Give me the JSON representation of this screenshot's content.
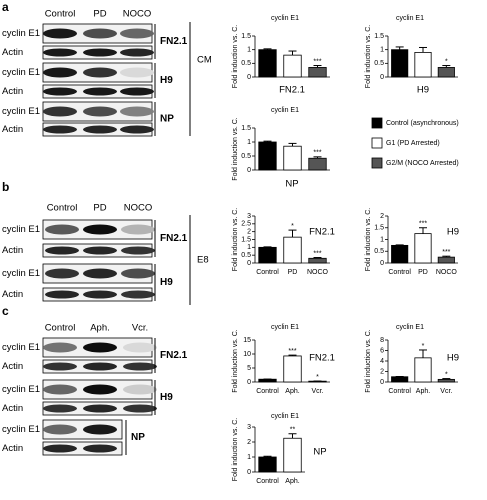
{
  "blots": [
    {
      "letter": "a",
      "lanes": [
        "Control",
        "PD",
        "NOCO"
      ],
      "groups": [
        {
          "name": "FN2.1",
          "rows": [
            "cyclin E1",
            "Actin"
          ]
        },
        {
          "name": "H9",
          "rows": [
            "cyclin E1",
            "Actin"
          ]
        },
        {
          "name": "NP",
          "rows": [
            "cyclin E1",
            "Actin"
          ]
        }
      ],
      "condition": "CM"
    },
    {
      "letter": "b",
      "lanes": [
        "Control",
        "PD",
        "NOCO"
      ],
      "groups": [
        {
          "name": "FN2.1",
          "rows": [
            "cyclin E1",
            "Actin"
          ]
        },
        {
          "name": "H9",
          "rows": [
            "cyclin E1",
            "Actin"
          ]
        }
      ],
      "condition": "E8"
    },
    {
      "letter": "c",
      "lanes": [
        "Control",
        "Aph.",
        "Vcr."
      ],
      "groups": [
        {
          "name": "FN2.1",
          "rows": [
            "cyclin E1",
            "Actin"
          ]
        },
        {
          "name": "H9",
          "rows": [
            "cyclin E1",
            "Actin"
          ]
        },
        {
          "name": "NP",
          "rows": [
            "cyclin E1",
            "Actin"
          ]
        }
      ]
    }
  ],
  "legend": [
    {
      "name": "Control (asynchronous)",
      "color": "#000000"
    },
    {
      "name": "G1 (PD Arrested)",
      "color": "#ffffff"
    },
    {
      "name": "G2/M (NOCO Arrested)",
      "color": "#555555"
    }
  ],
  "chart_data": [
    {
      "type": "bar",
      "title": "cyclin E1",
      "ylabel": "Fold induction vs. C.",
      "label": "FN2.1",
      "values": [
        1.0,
        0.8,
        0.35
      ],
      "errors": [
        0.03,
        0.15,
        0.07
      ],
      "colors": [
        "#000000",
        "#ffffff",
        "#555555"
      ],
      "annotations": [
        null,
        null,
        "***"
      ],
      "ylim": [
        0,
        1.5
      ],
      "yticks": [
        0,
        0.5,
        1,
        1.5
      ]
    },
    {
      "type": "bar",
      "title": "cyclin E1",
      "ylabel": "Fold induction vs. C.",
      "label": "H9",
      "values": [
        1.0,
        0.9,
        0.35
      ],
      "errors": [
        0.1,
        0.18,
        0.07
      ],
      "colors": [
        "#000000",
        "#ffffff",
        "#555555"
      ],
      "annotations": [
        null,
        null,
        "*"
      ],
      "ylim": [
        0,
        1.5
      ],
      "yticks": [
        0,
        0.5,
        1,
        1.5
      ]
    },
    {
      "type": "bar",
      "title": "cyclin E1",
      "ylabel": "Fold induction vs. C.",
      "label": "NP",
      "values": [
        1.0,
        0.85,
        0.42
      ],
      "errors": [
        0.03,
        0.1,
        0.05
      ],
      "colors": [
        "#000000",
        "#ffffff",
        "#555555"
      ],
      "annotations": [
        null,
        null,
        "***"
      ],
      "ylim": [
        0,
        1.5
      ],
      "yticks": [
        0,
        0.5,
        1,
        1.5
      ]
    },
    {
      "type": "bar",
      "ylabel": "Fold induction vs. C.",
      "label": "FN2.1",
      "categories": [
        "Control",
        "PD",
        "NOCO"
      ],
      "values": [
        1.0,
        1.65,
        0.3
      ],
      "errors": [
        0.03,
        0.45,
        0.05
      ],
      "colors": [
        "#000000",
        "#ffffff",
        "#555555"
      ],
      "annotations": [
        null,
        "*",
        "***"
      ],
      "ylim": [
        0,
        3
      ],
      "yticks": [
        0,
        0.5,
        1,
        1.5,
        2,
        2.5,
        3
      ]
    },
    {
      "type": "bar",
      "ylabel": "Fold induction vs. C.",
      "label": "H9",
      "categories": [
        "Control",
        "PD",
        "NOCO"
      ],
      "values": [
        0.75,
        1.25,
        0.25
      ],
      "errors": [
        0.02,
        0.25,
        0.04
      ],
      "colors": [
        "#000000",
        "#ffffff",
        "#555555"
      ],
      "annotations": [
        null,
        "***",
        "***"
      ],
      "ylim": [
        0,
        2
      ],
      "yticks": [
        0,
        0.5,
        1,
        1.5,
        2
      ]
    },
    {
      "type": "bar",
      "title": "cyclin E1",
      "ylabel": "Fold induction vs. C.",
      "label": "FN2.1",
      "categories": [
        "Control",
        "Aph.",
        "Vcr."
      ],
      "values": [
        1.0,
        9.3,
        0.3
      ],
      "errors": [
        0.05,
        0.3,
        0.05
      ],
      "colors": [
        "#000000",
        "#ffffff",
        "#555555"
      ],
      "annotations": [
        null,
        "***",
        "*"
      ],
      "ylim": [
        0,
        15
      ],
      "yticks": [
        0,
        5,
        10,
        15
      ]
    },
    {
      "type": "bar",
      "title": "cyclin E1",
      "ylabel": "Fold induction vs. C.",
      "label": "H9",
      "categories": [
        "Control",
        "Aph.",
        "Vcr."
      ],
      "values": [
        1.0,
        4.6,
        0.5
      ],
      "errors": [
        0.05,
        1.5,
        0.15
      ],
      "colors": [
        "#000000",
        "#ffffff",
        "#555555"
      ],
      "annotations": [
        null,
        "*",
        "*"
      ],
      "ylim": [
        0,
        8
      ],
      "yticks": [
        0,
        2,
        4,
        6,
        8
      ]
    },
    {
      "type": "bar",
      "title": "cyclin E1",
      "ylabel": "Fold induction vs. C.",
      "label": "NP",
      "categories": [
        "Control",
        "Aph."
      ],
      "values": [
        1.0,
        2.25
      ],
      "errors": [
        0.05,
        0.3
      ],
      "colors": [
        "#000000",
        "#ffffff"
      ],
      "annotations": [
        null,
        "**"
      ],
      "ylim": [
        0,
        3
      ],
      "yticks": [
        0,
        1,
        2,
        3
      ]
    }
  ]
}
